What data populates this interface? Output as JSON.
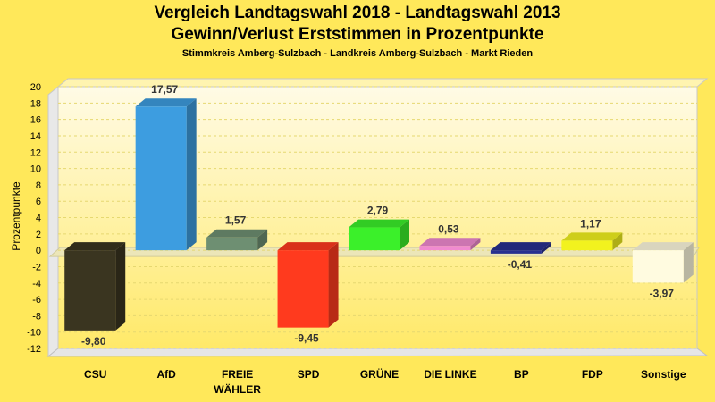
{
  "chart_data": {
    "type": "bar",
    "title": "Vergleich Landtagswahl 2018 - Landtagswahl 2013",
    "subtitle": "Gewinn/Verlust Erststimmen in Prozentpunkte",
    "subsubtitle": "Stimmkreis Amberg-Sulzbach - Landkreis Amberg-Sulzbach - Markt Rieden",
    "ylabel": "Prozentpunkte",
    "xlabel": "",
    "ylim": [
      -12,
      20
    ],
    "yticks": [
      "20",
      "18",
      "16",
      "14",
      "12",
      "10",
      "8",
      "6",
      "4",
      "2",
      "0",
      "-2",
      "-4",
      "-6",
      "-8",
      "-10",
      "-12"
    ],
    "grid": true,
    "categories": [
      {
        "name": "CSU",
        "line1": "CSU",
        "line2": "",
        "value": -9.8,
        "label": "-9,80",
        "color": "#3a3520"
      },
      {
        "name": "AfD",
        "line1": "AfD",
        "line2": "",
        "value": 17.57,
        "label": "17,57",
        "color": "#3d9de0"
      },
      {
        "name": "FREIE WÄHLER",
        "line1": "FREIE",
        "line2": "WÄHLER",
        "value": 1.57,
        "label": "1,57",
        "color": "#6e8f72"
      },
      {
        "name": "SPD",
        "line1": "SPD",
        "line2": "",
        "value": -9.45,
        "label": "-9,45",
        "color": "#ff3a1e"
      },
      {
        "name": "GRÜNE",
        "line1": "GRÜNE",
        "line2": "",
        "value": 2.79,
        "label": "2,79",
        "color": "#3bf02a"
      },
      {
        "name": "DIE LINKE",
        "line1": "DIE LINKE",
        "line2": "",
        "value": 0.53,
        "label": "0,53",
        "color": "#f08ad0"
      },
      {
        "name": "BP",
        "line1": "BP",
        "line2": "",
        "value": -0.41,
        "label": "-0,41",
        "color": "#283090"
      },
      {
        "name": "FDP",
        "line1": "FDP",
        "line2": "",
        "value": 1.17,
        "label": "1,17",
        "color": "#f2f21e"
      },
      {
        "name": "Sonstige",
        "line1": "Sonstige",
        "line2": "",
        "value": -3.97,
        "label": "-3,97",
        "color": "#fffbe0"
      }
    ]
  }
}
